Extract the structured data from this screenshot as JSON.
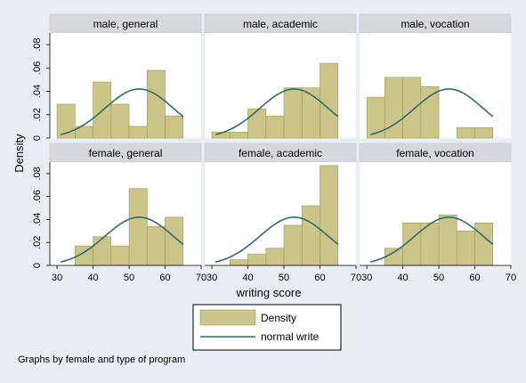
{
  "figure": {
    "xlabel": "writing score",
    "ylabel": "Density",
    "note": "Graphs by female and type of program"
  },
  "legend": {
    "items": [
      {
        "label": "Density",
        "type": "bar"
      },
      {
        "label": "normal write",
        "type": "line"
      }
    ]
  },
  "colors": {
    "bar_fill": "#cbc58a",
    "bar_edge": "#9e9858",
    "curve": "#2f6e68",
    "panel_title_bg": "#d6d8dc",
    "page_bg": "#e9eef5",
    "plot_bg": "#ffffff"
  },
  "chart_data": {
    "type": "histogram",
    "bins": [
      [
        30,
        35
      ],
      [
        35,
        40
      ],
      [
        40,
        45
      ],
      [
        45,
        50
      ],
      [
        50,
        55
      ],
      [
        55,
        60
      ],
      [
        60,
        65
      ]
    ],
    "xlim": [
      28,
      70
    ],
    "ylim": [
      0,
      0.09
    ],
    "xticks": [
      30,
      40,
      50,
      60,
      70
    ],
    "yticks": [
      0,
      0.02,
      0.04,
      0.06,
      0.08
    ],
    "ytick_labels": [
      "0",
      ".02",
      ".04",
      ".06",
      ".08"
    ],
    "grid": false,
    "legend_position": "bottom",
    "normal_curve": {
      "name": "normal write",
      "mean": 52.8,
      "sd": 9.5,
      "range": [
        31,
        65
      ]
    },
    "panels": [
      {
        "title": "male, general",
        "values": [
          0.029,
          0.01,
          0.048,
          0.029,
          0.01,
          0.058,
          0.019
        ]
      },
      {
        "title": "male, academic",
        "values": [
          0.005,
          0.005,
          0.025,
          0.019,
          0.043,
          0.043,
          0.064
        ]
      },
      {
        "title": "male, vocation",
        "values": [
          0.035,
          0.052,
          0.052,
          0.044,
          0.0,
          0.009,
          0.009
        ]
      },
      {
        "title": "female, general",
        "values": [
          0.0,
          0.017,
          0.025,
          0.017,
          0.067,
          0.034,
          0.042
        ]
      },
      {
        "title": "female, academic",
        "values": [
          0.0,
          0.005,
          0.01,
          0.015,
          0.035,
          0.052,
          0.087
        ]
      },
      {
        "title": "female, vocation",
        "values": [
          0.0,
          0.015,
          0.037,
          0.037,
          0.044,
          0.03,
          0.037
        ]
      }
    ]
  }
}
